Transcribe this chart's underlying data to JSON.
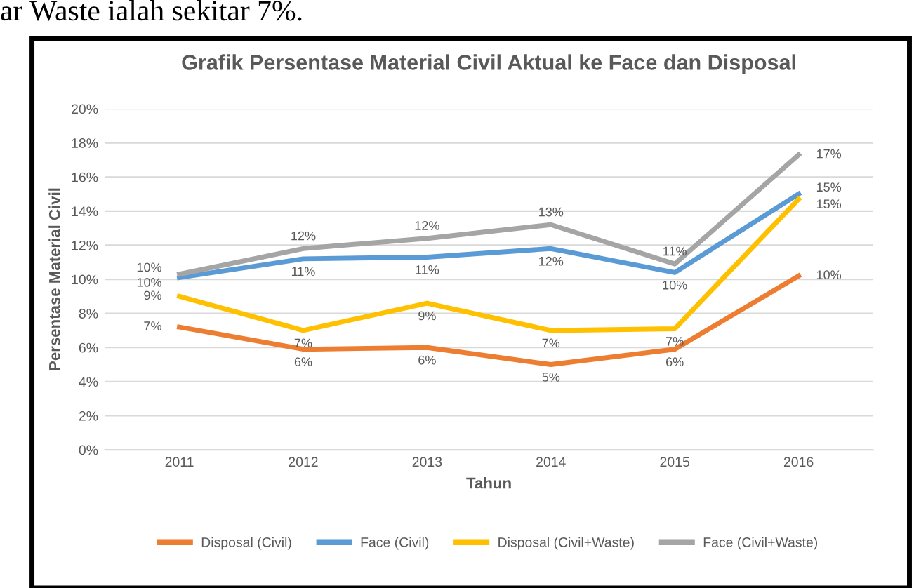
{
  "chart_data": {
    "type": "line",
    "title": "Grafik Persentase Material Civil Aktual ke Face dan Disposal",
    "xlabel": "Tahun",
    "ylabel": "Persentase Material Civil",
    "annotations": [
      "ar Waste ialah sekitar 7%."
    ],
    "categories": [
      "2011",
      "2012",
      "2013",
      "2014",
      "2015",
      "2016"
    ],
    "series": [
      {
        "name": "Disposal (Civil)",
        "color": "#ed7d31",
        "values": [
          7.2,
          5.9,
          6.0,
          5.0,
          5.9,
          10.2
        ],
        "value_labels": [
          "7%",
          "6%",
          "6%",
          "5%",
          "6%",
          "10%"
        ]
      },
      {
        "name": "Face (Civil)",
        "color": "#5b9bd5",
        "values": [
          10.1,
          11.2,
          11.3,
          11.8,
          10.4,
          15.0
        ],
        "value_labels": [
          "10%",
          "11%",
          "11%",
          "12%",
          "10%",
          "15%"
        ]
      },
      {
        "name": "Disposal (Civil+Waste)",
        "color": "#ffc000",
        "values": [
          9.0,
          7.0,
          8.6,
          7.0,
          7.1,
          14.7
        ],
        "value_labels": [
          "9%",
          "7%",
          "9%",
          "7%",
          "7%",
          "15%"
        ]
      },
      {
        "name": "Face (Civil+Waste)",
        "color": "#a5a5a5",
        "values": [
          10.3,
          11.8,
          12.4,
          13.2,
          10.9,
          17.3
        ],
        "value_labels": [
          "10%",
          "12%",
          "12%",
          "13%",
          "11%",
          "17%"
        ]
      }
    ],
    "ylim": [
      0,
      20
    ],
    "yticks": [
      {
        "value": 0,
        "label": "0%"
      },
      {
        "value": 2,
        "label": "2%"
      },
      {
        "value": 4,
        "label": "4%"
      },
      {
        "value": 6,
        "label": "6%"
      },
      {
        "value": 8,
        "label": "8%"
      },
      {
        "value": 10,
        "label": "10%"
      },
      {
        "value": 12,
        "label": "12%"
      },
      {
        "value": 14,
        "label": "14%"
      },
      {
        "value": 16,
        "label": "16%"
      },
      {
        "value": 18,
        "label": "18%"
      },
      {
        "value": 20,
        "label": "20%"
      }
    ],
    "grid": "y",
    "legend": "bottom",
    "marker": "none",
    "line_style": "solid"
  }
}
